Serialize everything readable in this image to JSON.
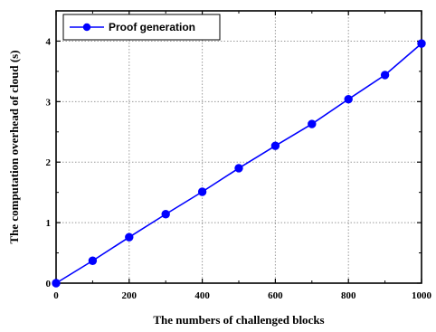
{
  "chart_data": {
    "type": "line",
    "title": "",
    "xlabel": "The numbers of challenged blocks",
    "ylabel": "The computation overhead of cloud (s)",
    "xlim": [
      0,
      1000
    ],
    "ylim": [
      0,
      4.5
    ],
    "x_ticks": [
      0,
      200,
      400,
      600,
      800,
      1000
    ],
    "y_ticks": [
      0,
      1,
      2,
      3,
      4
    ],
    "grid": true,
    "legend_position": "top-left",
    "x": [
      0,
      100,
      200,
      300,
      400,
      500,
      600,
      700,
      800,
      900,
      1000
    ],
    "series": [
      {
        "name": "Proof generation",
        "color": "#0000ff",
        "marker": "circle",
        "values": [
          0,
          0.37,
          0.76,
          1.14,
          1.51,
          1.9,
          2.27,
          2.63,
          3.04,
          3.44,
          3.96
        ]
      }
    ]
  }
}
